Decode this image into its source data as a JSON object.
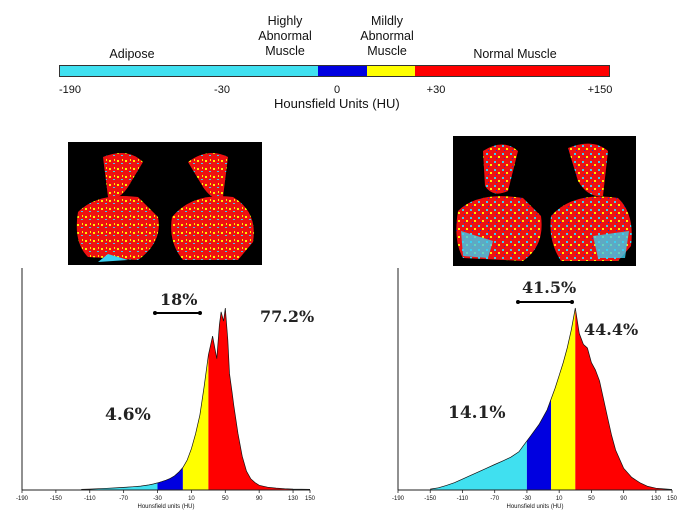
{
  "scale": {
    "categories": [
      {
        "label": "Adipose",
        "range": [
          -190,
          -30
        ],
        "color": "#40e0f0"
      },
      {
        "label": "Highly\nAbnormal\nMuscle",
        "range": [
          -30,
          0
        ],
        "color": "#0000e0"
      },
      {
        "label": "Mildly\nAbnormal\nMuscle",
        "range": [
          0,
          30
        ],
        "color": "#ffff00"
      },
      {
        "label": "Normal Muscle",
        "range": [
          30,
          150
        ],
        "color": "#ff0000"
      }
    ],
    "ticks": [
      "-190",
      "-30",
      "0",
      "+30",
      "+150"
    ],
    "title": "Hounsfield Units (HU)"
  },
  "chart_data": [
    {
      "type": "area",
      "xlabel": "Hounsfield units (HU)",
      "xlim": [
        -190,
        150
      ],
      "xticks": [
        -190,
        -150,
        -110,
        -70,
        -30,
        10,
        50,
        90,
        130,
        150
      ],
      "x": [
        -120,
        -110,
        -100,
        -90,
        -80,
        -70,
        -60,
        -50,
        -40,
        -35,
        -30,
        -25,
        -20,
        -15,
        -10,
        -5,
        0,
        5,
        10,
        15,
        20,
        25,
        30,
        35,
        40,
        43,
        45,
        48,
        50,
        53,
        55,
        58,
        60,
        65,
        70,
        75,
        80,
        85,
        90,
        100,
        110,
        120,
        130,
        140,
        150
      ],
      "y": [
        0.3,
        0.5,
        0.7,
        0.9,
        1.1,
        1.4,
        1.7,
        2.1,
        2.7,
        3.2,
        3.8,
        4.5,
        5.2,
        6.2,
        7.5,
        9.5,
        12,
        16,
        22,
        30,
        40,
        55,
        72,
        82,
        70,
        88,
        95,
        90,
        97,
        80,
        62,
        52,
        45,
        30,
        18,
        10,
        6,
        4,
        2.5,
        1.5,
        1,
        0.7,
        0.5,
        0.4,
        0.3
      ],
      "annotations": {
        "adipose": "4.6%",
        "abnormal": "18%",
        "normal": "77.2%"
      }
    },
    {
      "type": "area",
      "xlabel": "Hounsfield units (HU)",
      "xlim": [
        -190,
        150
      ],
      "xticks": [
        -190,
        -150,
        -110,
        -70,
        -30,
        10,
        50,
        90,
        130,
        150
      ],
      "x": [
        -150,
        -140,
        -130,
        -120,
        -110,
        -100,
        -90,
        -80,
        -70,
        -60,
        -50,
        -40,
        -35,
        -30,
        -25,
        -20,
        -15,
        -10,
        -5,
        0,
        5,
        10,
        15,
        20,
        25,
        30,
        35,
        40,
        45,
        50,
        55,
        60,
        65,
        70,
        75,
        80,
        90,
        100,
        110,
        120,
        130,
        140,
        150
      ],
      "y": [
        0.5,
        1.2,
        2.5,
        4,
        6,
        8,
        10,
        12,
        14,
        16,
        18,
        21,
        24,
        27,
        30,
        33,
        36,
        40,
        44,
        50,
        56,
        63,
        70,
        78,
        88,
        100,
        86,
        80,
        78,
        70,
        66,
        60,
        50,
        40,
        30,
        22,
        12,
        7,
        4,
        2,
        1,
        0.6,
        0.3
      ],
      "annotations": {
        "adipose": "14.1%",
        "abnormal": "41.5%",
        "normal": "44.4%"
      }
    }
  ]
}
